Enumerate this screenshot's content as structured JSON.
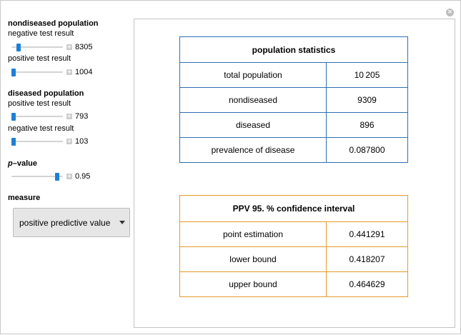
{
  "window": {
    "close_icon": "close-circle-icon"
  },
  "controls": {
    "nondiseased": {
      "title": "nondiseased population",
      "negative": {
        "label": "negative test result",
        "value": "8305",
        "level": 0.11
      },
      "positive": {
        "label": "positive test result",
        "value": "1004",
        "level": 0.0
      }
    },
    "diseased": {
      "title": "diseased population",
      "positive": {
        "label": "positive test result",
        "value": "793",
        "level": 0.0
      },
      "negative": {
        "label": "negative test result",
        "value": "103",
        "level": 0.0
      }
    },
    "pvalue": {
      "title_italic": "p",
      "title_rest": "–value",
      "value": "0.95",
      "level": 0.92
    },
    "measure": {
      "title": "measure",
      "selected": "positive predictive value"
    }
  },
  "population_stats": {
    "header": "population statistics",
    "rows": [
      {
        "label": "total population",
        "value": "10 205"
      },
      {
        "label": "nondiseased",
        "value": "9309"
      },
      {
        "label": "diseased",
        "value": "896"
      },
      {
        "label": "prevalence of disease",
        "value": "0.087800"
      }
    ]
  },
  "confidence": {
    "header": "PPV 95. % confidence interval",
    "rows": [
      {
        "label": "point estimation",
        "value": "0.441291"
      },
      {
        "label": "lower bound",
        "value": "0.418207"
      },
      {
        "label": "upper bound",
        "value": "0.464629"
      }
    ]
  },
  "colors": {
    "slider_thumb": "#1e7fd4",
    "stats_border": "#2f6fb3",
    "ci_border": "#e39a2d"
  }
}
